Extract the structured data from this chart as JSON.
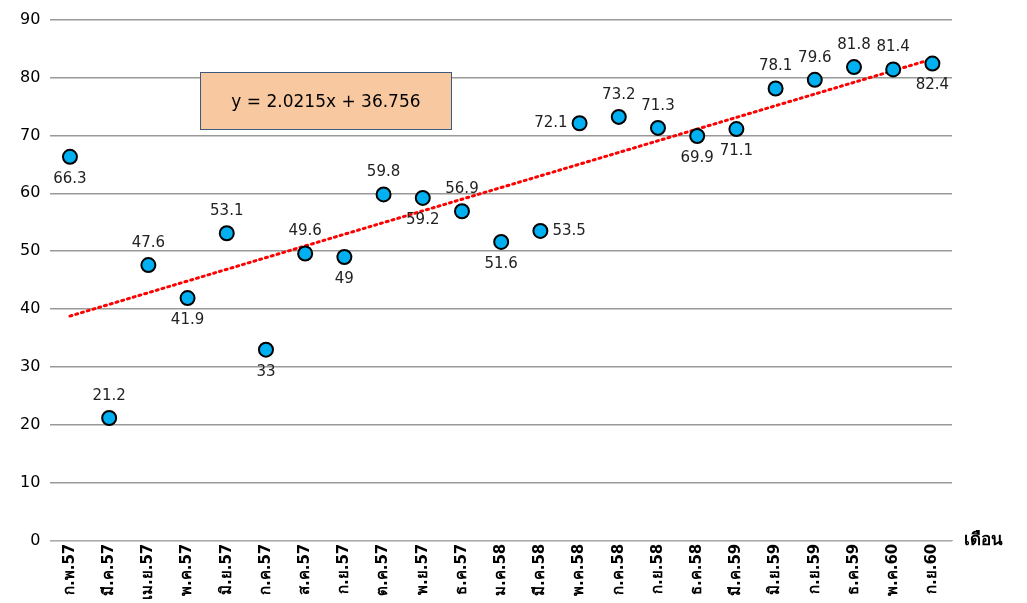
{
  "chart_data": {
    "type": "scatter",
    "xlabel": "เดือน",
    "categories": [
      "ก.พ.57",
      "มี.ค.57",
      "เม.ย.57",
      "พ.ค.57",
      "มิ.ย.57",
      "ก.ค.57",
      "ส.ค.57",
      "ก.ย.57",
      "ต.ค.57",
      "พ.ย.57",
      "ธ.ค.57",
      "ม.ค.58",
      "มี.ค.58",
      "พ.ค.58",
      "ก.ค.58",
      "ก.ย.58",
      "ธ.ค.58",
      "มี.ค.59",
      "มิ.ย.59",
      "ก.ย.59",
      "ธ.ค.59",
      "พ.ค.60",
      "ก.ย.60"
    ],
    "series": [
      {
        "color": "#00b0f0",
        "marker": "circle",
        "values": [
          66.3,
          21.2,
          47.6,
          41.9,
          53.1,
          33,
          49.6,
          49,
          59.8,
          59.2,
          56.9,
          51.6,
          53.5,
          72.1,
          73.2,
          71.3,
          69.9,
          71.1,
          78.1,
          79.6,
          81.8,
          81.4,
          82.4
        ],
        "value_labels": [
          "66.3",
          "21.2",
          "47.6",
          "41.9",
          "53.1",
          "33",
          "49.6",
          "49",
          "59.8",
          "59.2",
          "56.9",
          "51.6",
          "53.5",
          "72.1",
          "73.2",
          "71.3",
          "69.9",
          "71.1",
          "78.1",
          "79.6",
          "81.8",
          "81.4",
          "82.4"
        ]
      },
      {
        "type": "line",
        "color": "#ff0000",
        "line_style": "dotted",
        "marker": "none",
        "x": [
          "ก.พ.57",
          "ก.ย.60"
        ],
        "values": [
          38.8,
          83.2
        ]
      }
    ],
    "annotations": [
      "y = 2.0215x + 36.756"
    ],
    "ylim": [
      0,
      90
    ],
    "yticks": [
      0,
      10,
      20,
      30,
      40,
      50,
      60,
      70,
      80,
      90
    ],
    "grid": "y",
    "legend": false
  }
}
